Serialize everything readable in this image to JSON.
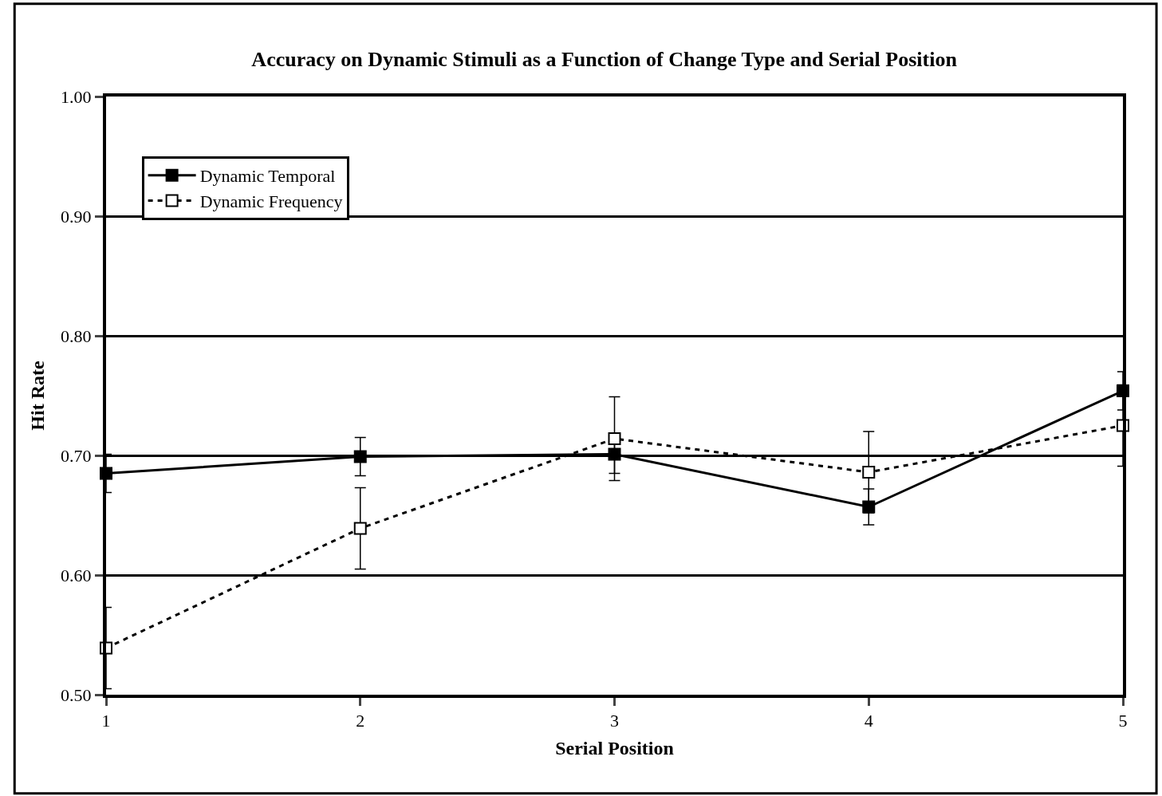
{
  "chart_data": {
    "type": "line",
    "title": "Accuracy on Dynamic Stimuli as a Function of Change Type and Serial Position",
    "xlabel": "Serial Position",
    "ylabel": "Hit Rate",
    "x": [
      1,
      2,
      3,
      4,
      5
    ],
    "xlim": [
      1,
      5
    ],
    "xticks": [
      1,
      2,
      3,
      4,
      5
    ],
    "ylim": [
      0.5,
      1.0
    ],
    "yticks": [
      {
        "value": 0.5,
        "label": "0.50"
      },
      {
        "value": 0.6,
        "label": "0.60"
      },
      {
        "value": 0.7,
        "label": "0.70"
      },
      {
        "value": 0.8,
        "label": "0.80"
      },
      {
        "value": 0.9,
        "label": "0.90"
      },
      {
        "value": 1.0,
        "label": "1.00"
      }
    ],
    "grid": "y",
    "legend": "top left",
    "marker": "square",
    "series": [
      {
        "name": "Dynamic Temporal",
        "color": "#000000",
        "line_style": "solid",
        "values": [
          0.685,
          0.699,
          0.701,
          0.657,
          0.754
        ],
        "errors": [
          0.016,
          0.016,
          0.016,
          0.015,
          0.016
        ]
      },
      {
        "name": "Dynamic Frequency",
        "color": "#000000",
        "line_style": "dotted",
        "values": [
          0.539,
          0.639,
          0.714,
          0.686,
          0.725
        ],
        "errors": [
          0.034,
          0.034,
          0.035,
          0.034,
          0.034
        ]
      }
    ]
  }
}
